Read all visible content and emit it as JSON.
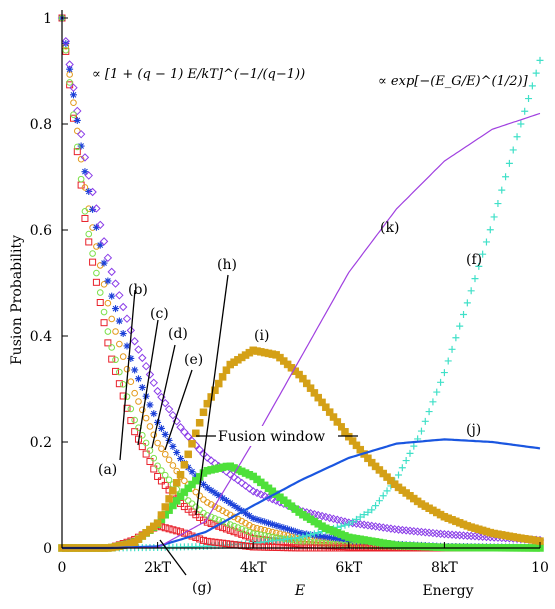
{
  "chart_data": {
    "type": "scatter",
    "title": "",
    "xlabel": "E",
    "xlabel_right": "Energy",
    "ylabel": "Fusion Probability",
    "xlim": [
      0,
      10
    ],
    "ylim": [
      0,
      1
    ],
    "x_ticks": [
      {
        "value": 0,
        "label": "0"
      },
      {
        "value": 2,
        "label": "2kT"
      },
      {
        "value": 4,
        "label": "4kT"
      },
      {
        "value": 6,
        "label": "6kT"
      },
      {
        "value": 8,
        "label": "8kT"
      },
      {
        "value": 10,
        "label": "10"
      }
    ],
    "y_ticks": [
      {
        "value": 0,
        "label": "0"
      },
      {
        "value": 0.2,
        "label": "0.2"
      },
      {
        "value": 0.4,
        "label": "0.4"
      },
      {
        "value": 0.6,
        "label": "0.6"
      },
      {
        "value": 0.8,
        "label": "0.8"
      },
      {
        "value": 1,
        "label": "1"
      }
    ],
    "grid": false,
    "formulas": {
      "left": "∝ [1 + (q − 1) E/kT]^(−1/(q−1))",
      "right": "∝ exp[−(E_G/E)^(1/2)]"
    },
    "series": [
      {
        "name": "(a)",
        "marker": "square",
        "color": "#e8202a",
        "x": [
          0,
          0.5,
          1,
          1.5,
          2,
          2.5,
          3,
          4,
          5,
          6,
          7,
          8,
          9,
          10
        ],
        "y": [
          1,
          0.606,
          0.368,
          0.223,
          0.135,
          0.082,
          0.05,
          0.018,
          0.007,
          0.002,
          0.001,
          0,
          0,
          0
        ]
      },
      {
        "name": "(b)",
        "marker": "circle",
        "color": "#e39a1c",
        "x": [
          0,
          0.5,
          1,
          1.5,
          2,
          2.5,
          3,
          4,
          5,
          6,
          7,
          8,
          9,
          10
        ],
        "y": [
          1,
          0.667,
          0.444,
          0.296,
          0.198,
          0.132,
          0.088,
          0.039,
          0.017,
          0.008,
          0.003,
          0.002,
          0.001,
          0
        ]
      },
      {
        "name": "(c)",
        "marker": "star",
        "color": "#1a3fd8",
        "x": [
          0,
          0.5,
          1,
          1.5,
          2,
          2.5,
          3,
          4,
          5,
          6,
          7,
          8,
          9,
          10
        ],
        "y": [
          1,
          0.698,
          0.487,
          0.34,
          0.237,
          0.166,
          0.116,
          0.056,
          0.028,
          0.014,
          0.007,
          0.003,
          0.002,
          0.001
        ]
      },
      {
        "name": "(d)",
        "marker": "diamond",
        "color": "#8a3ce8",
        "x": [
          0,
          0.5,
          1,
          1.5,
          2,
          2.5,
          3,
          4,
          5,
          6,
          7,
          8,
          9,
          10
        ],
        "y": [
          1,
          0.726,
          0.532,
          0.394,
          0.296,
          0.225,
          0.173,
          0.107,
          0.07,
          0.048,
          0.035,
          0.026,
          0.02,
          0.015
        ]
      },
      {
        "name": "(e)",
        "marker": "circle",
        "color": "#7ce04a",
        "x": [
          0,
          0.5,
          1,
          1.5,
          2,
          2.5,
          3,
          4,
          5,
          6,
          7,
          8,
          9,
          10
        ],
        "y": [
          1,
          0.62,
          0.39,
          0.245,
          0.155,
          0.1,
          0.063,
          0.027,
          0.012,
          0.005,
          0.002,
          0.001,
          0,
          0
        ]
      },
      {
        "name": "(f)",
        "marker": "plus",
        "color": "#40e0c8",
        "x": [
          0,
          1,
          2,
          3,
          4,
          5,
          6,
          6.5,
          7,
          7.5,
          8,
          8.5,
          9,
          9.5,
          10
        ],
        "y": [
          0,
          0,
          0.001,
          0.003,
          0.009,
          0.02,
          0.045,
          0.073,
          0.131,
          0.216,
          0.331,
          0.468,
          0.612,
          0.77,
          0.92
        ]
      },
      {
        "name": "(g)",
        "marker": "square",
        "color": "#e8202a",
        "x": [
          0,
          0.5,
          1,
          1.5,
          2,
          2.5,
          3,
          4,
          5,
          6,
          7,
          8,
          9,
          10
        ],
        "y": [
          0,
          0,
          0,
          0.015,
          0.042,
          0.03,
          0.013,
          0.002,
          0,
          0,
          0,
          0,
          0,
          0
        ]
      },
      {
        "name": "(h)",
        "marker": "filled-square",
        "color": "#4ee03a",
        "x": [
          0,
          0.5,
          1,
          1.5,
          2,
          2.5,
          3,
          3.5,
          4,
          4.5,
          5,
          5.5,
          6,
          7,
          8,
          10
        ],
        "y": [
          0,
          0,
          0,
          0.01,
          0.045,
          0.1,
          0.145,
          0.155,
          0.135,
          0.1,
          0.065,
          0.038,
          0.02,
          0.005,
          0.001,
          0
        ]
      },
      {
        "name": "(i)",
        "marker": "filled-square",
        "color": "#d4a017",
        "x": [
          0,
          0.5,
          1,
          1.5,
          2,
          2.5,
          3,
          3.5,
          4,
          4.5,
          5,
          5.5,
          6,
          6.5,
          7,
          7.5,
          8,
          8.5,
          9,
          9.5,
          10
        ],
        "y": [
          0,
          0,
          0,
          0.009,
          0.047,
          0.142,
          0.266,
          0.345,
          0.373,
          0.364,
          0.324,
          0.268,
          0.21,
          0.159,
          0.117,
          0.084,
          0.059,
          0.041,
          0.028,
          0.02,
          0.013
        ]
      },
      {
        "name": "(j)",
        "marker": "line",
        "color": "#1a56e0",
        "x": [
          0,
          1,
          2,
          3,
          4,
          5,
          6,
          7,
          8,
          9,
          10
        ],
        "y": [
          0,
          0,
          0.003,
          0.03,
          0.08,
          0.128,
          0.17,
          0.197,
          0.205,
          0.2,
          0.188
        ]
      },
      {
        "name": "(k)",
        "marker": "thin-line",
        "color": "#a040e0",
        "x": [
          0,
          1,
          2,
          3,
          4,
          5,
          6,
          7,
          8,
          9,
          10
        ],
        "y": [
          0,
          0,
          0.001,
          0.05,
          0.2,
          0.36,
          0.52,
          0.64,
          0.73,
          0.79,
          0.82
        ]
      }
    ],
    "annotations": {
      "fusion_window": "Fusion window",
      "labels": [
        "(a)",
        "(b)",
        "(c)",
        "(d)",
        "(e)",
        "(f)",
        "(g)",
        "(h)",
        "(i)",
        "(j)",
        "(k)"
      ]
    }
  }
}
